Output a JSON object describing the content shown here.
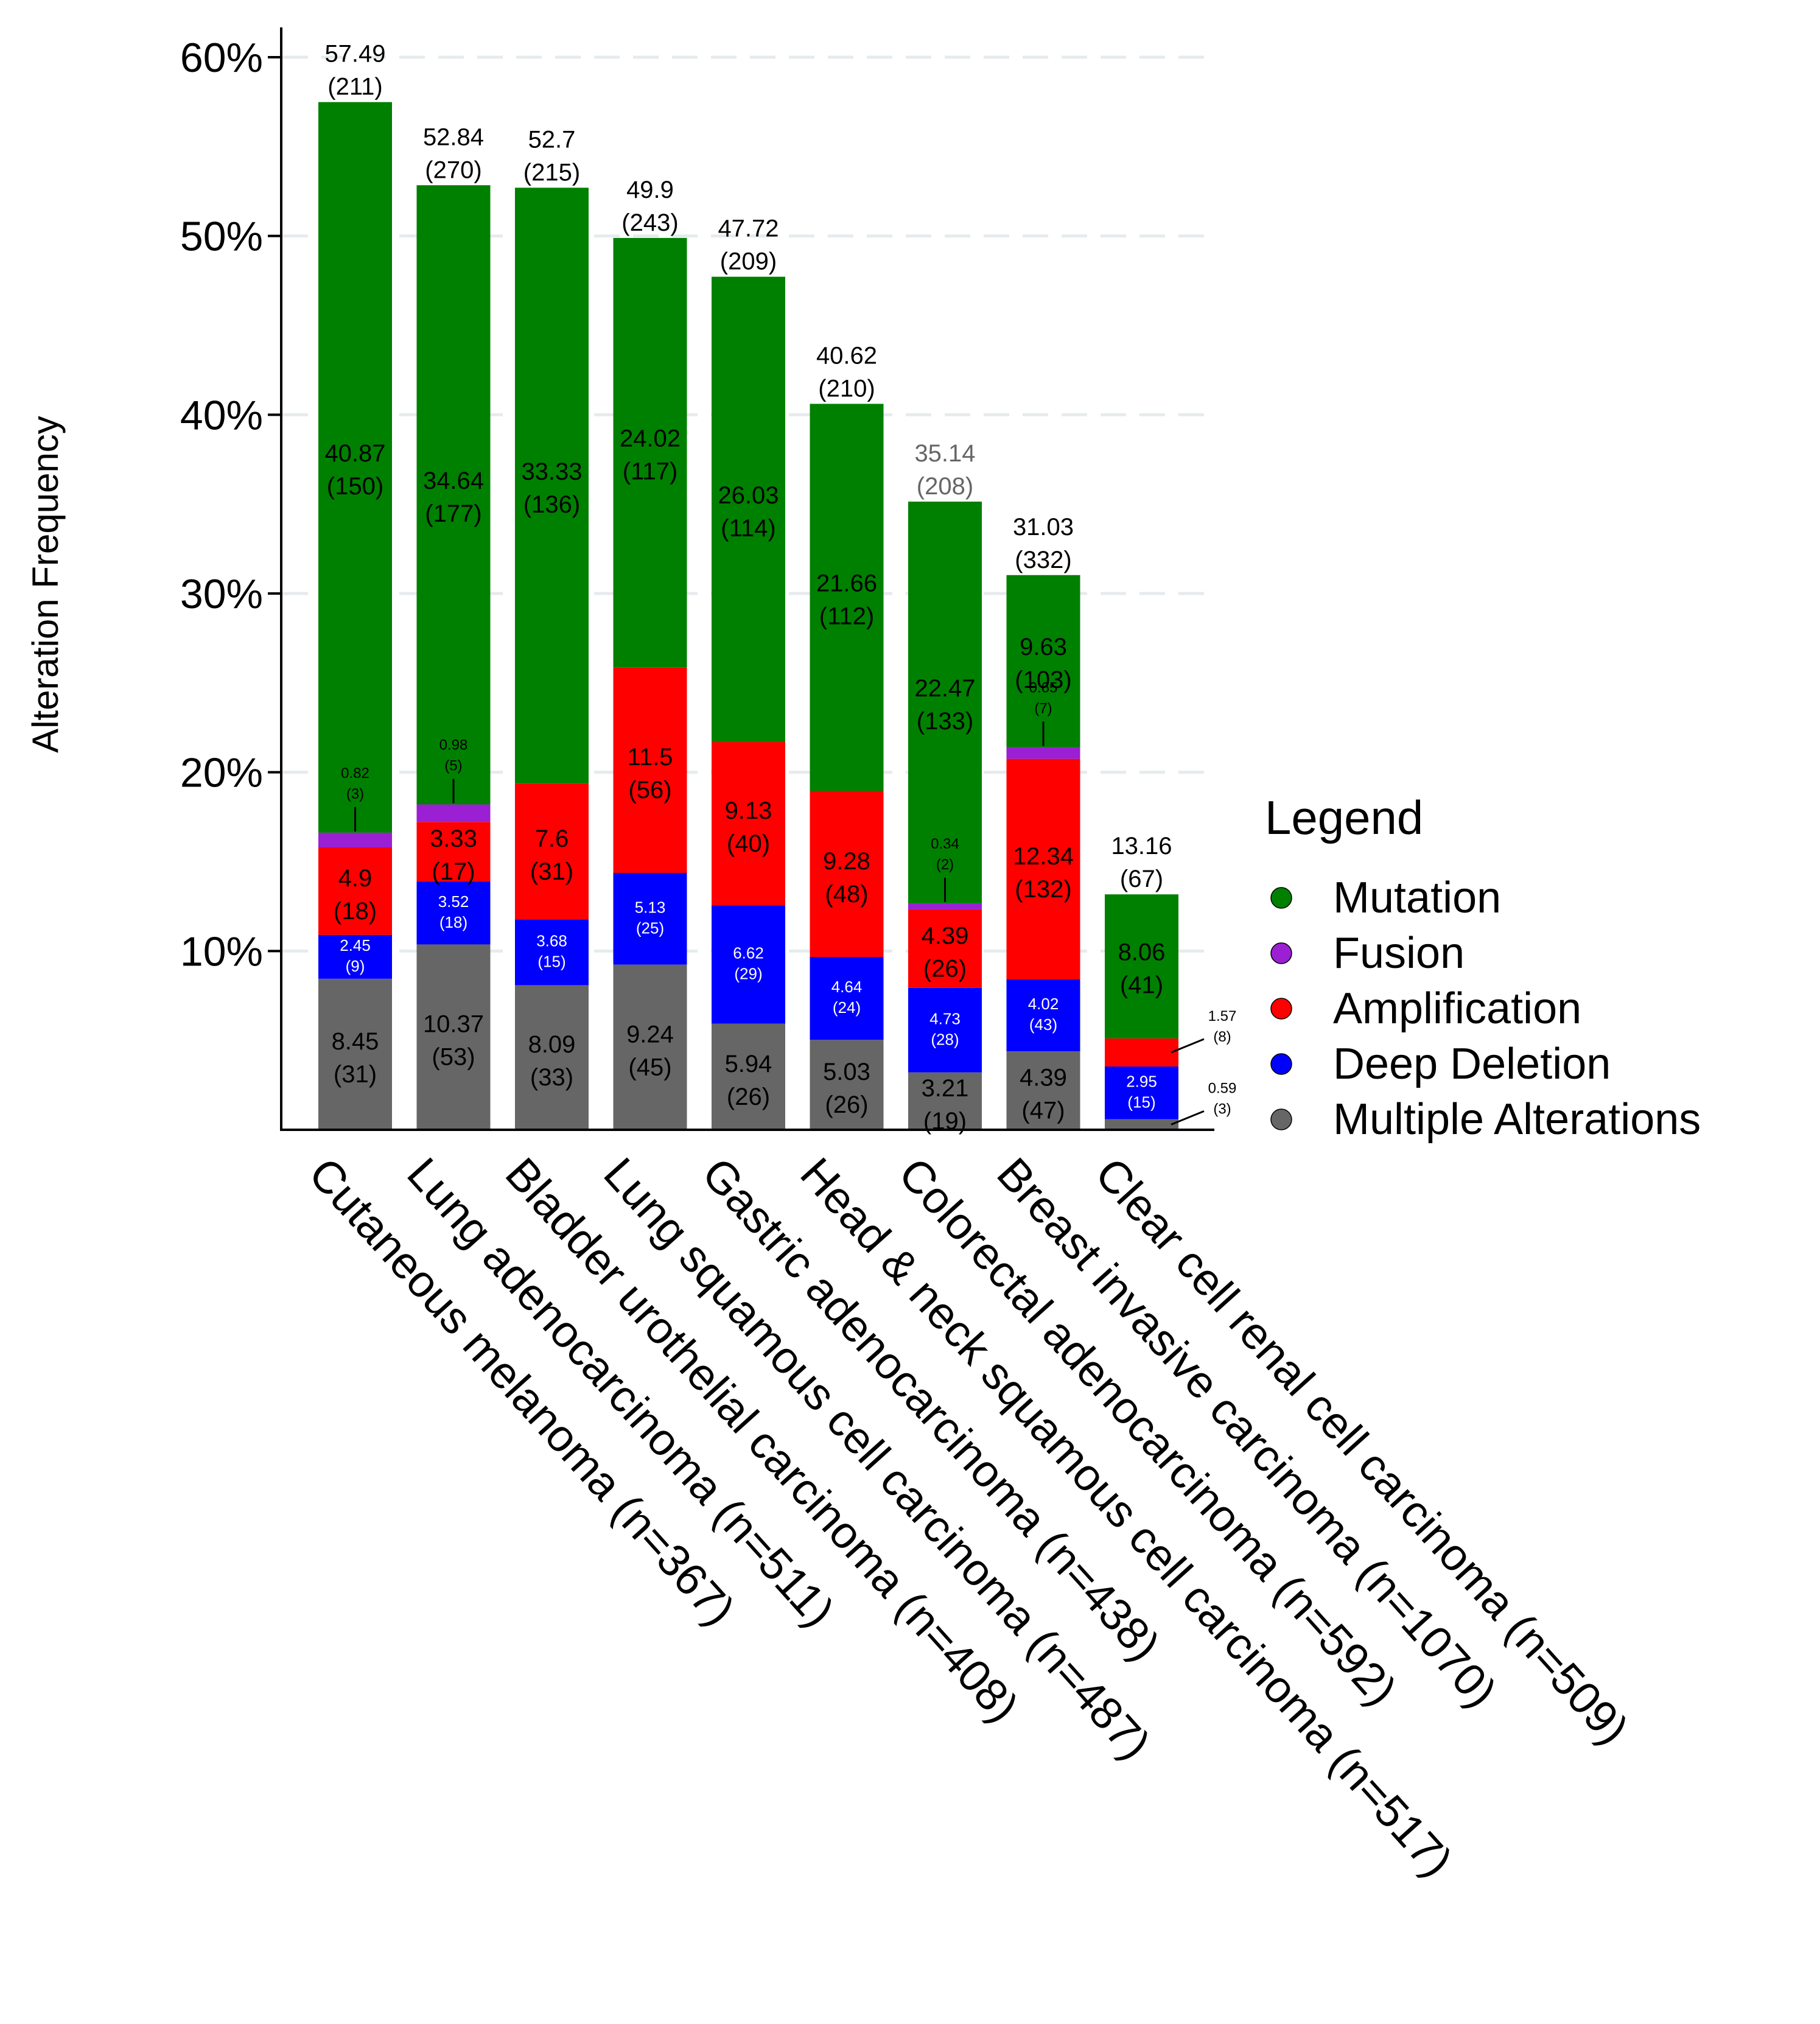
{
  "chart_data": {
    "type": "bar",
    "stacked": true,
    "xlabel": "",
    "ylabel": "Alteration Frequency",
    "ylim": [
      0,
      60
    ],
    "yticks": [
      "10%",
      "20%",
      "30%",
      "40%",
      "50%",
      "60%"
    ],
    "grid": "horizontal dashed",
    "legend": {
      "title": "Legend",
      "placement": "right",
      "items": [
        {
          "name": "Mutation",
          "color": "#008000"
        },
        {
          "name": "Fusion",
          "color": "#9b1fd3"
        },
        {
          "name": "Amplification",
          "color": "#ff0000"
        },
        {
          "name": "Deep Deletion",
          "color": "#0000ff"
        },
        {
          "name": "Multiple Alterations",
          "color": "#666666"
        }
      ]
    },
    "categories": [
      "Cutaneous melanoma (n=367)",
      "Lung adenocarcinoma (n=511)",
      "Bladder urothelial carcinoma (n=408)",
      "Lung squamous cell carcinoma (n=487)",
      "Gastric adenocarcinoma (n=438)",
      "Head & neck squamous cell carcinoma (n=517)",
      "Colorectal adenocarcinoma (n=592)",
      "Breast invasive carcinoma (n=1070)",
      "Clear cell renal cell carcinoma (n=509)"
    ],
    "totals": [
      {
        "value": "57.49",
        "count": "(211)"
      },
      {
        "value": "52.84",
        "count": "(270)"
      },
      {
        "value": "52.7",
        "count": "(215)"
      },
      {
        "value": "49.9",
        "count": "(243)"
      },
      {
        "value": "47.72",
        "count": "(209)"
      },
      {
        "value": "40.62",
        "count": "(210)"
      },
      {
        "value": "35.14",
        "count": "(208)"
      },
      {
        "value": "31.03",
        "count": "(332)"
      },
      {
        "value": "13.16",
        "count": "(67)"
      }
    ],
    "series": [
      {
        "name": "Multiple Alterations",
        "color": "#666666",
        "values": [
          8.45,
          10.37,
          8.09,
          9.24,
          5.94,
          5.03,
          3.21,
          4.39,
          0.59
        ],
        "labels": [
          {
            "value": "8.45",
            "count": "(31)"
          },
          {
            "value": "10.37",
            "count": "(53)"
          },
          {
            "value": "8.09",
            "count": "(33)"
          },
          {
            "value": "9.24",
            "count": "(45)"
          },
          {
            "value": "5.94",
            "count": "(26)"
          },
          {
            "value": "5.03",
            "count": "(26)"
          },
          {
            "value": "3.21",
            "count": "(19)"
          },
          {
            "value": "4.39",
            "count": "(47)"
          },
          {
            "value": "0.59",
            "count": "(3)"
          }
        ]
      },
      {
        "name": "Deep Deletion",
        "color": "#0000ff",
        "values": [
          2.45,
          3.52,
          3.68,
          5.13,
          6.62,
          4.64,
          4.73,
          4.02,
          2.95
        ],
        "labels": [
          {
            "value": "2.45",
            "count": "(9)"
          },
          {
            "value": "3.52",
            "count": "(18)"
          },
          {
            "value": "3.68",
            "count": "(15)"
          },
          {
            "value": "5.13",
            "count": "(25)"
          },
          {
            "value": "6.62",
            "count": "(29)"
          },
          {
            "value": "4.64",
            "count": "(24)"
          },
          {
            "value": "4.73",
            "count": "(28)"
          },
          {
            "value": "4.02",
            "count": "(43)"
          },
          {
            "value": "2.95",
            "count": "(15)"
          }
        ]
      },
      {
        "name": "Amplification",
        "color": "#ff0000",
        "values": [
          4.9,
          3.33,
          7.6,
          11.5,
          9.13,
          9.28,
          4.39,
          12.34,
          1.57
        ],
        "labels": [
          {
            "value": "4.9",
            "count": "(18)"
          },
          {
            "value": "3.33",
            "count": "(17)"
          },
          {
            "value": "7.6",
            "count": "(31)"
          },
          {
            "value": "11.5",
            "count": "(56)"
          },
          {
            "value": "9.13",
            "count": "(40)"
          },
          {
            "value": "9.28",
            "count": "(48)"
          },
          {
            "value": "4.39",
            "count": "(26)"
          },
          {
            "value": "12.34",
            "count": "(132)"
          },
          {
            "value": "1.57",
            "count": "(8)"
          }
        ]
      },
      {
        "name": "Fusion",
        "color": "#9b1fd3",
        "values": [
          0.82,
          0.98,
          0,
          0,
          0,
          0,
          0.34,
          0.65,
          0
        ],
        "labels": [
          {
            "value": "0.82",
            "count": "(3)"
          },
          {
            "value": "0.98",
            "count": "(5)"
          },
          null,
          null,
          null,
          null,
          {
            "value": "0.34",
            "count": "(2)"
          },
          {
            "value": "0.65",
            "count": "(7)"
          },
          null
        ]
      },
      {
        "name": "Mutation",
        "color": "#008000",
        "values": [
          40.87,
          34.64,
          33.33,
          24.02,
          26.03,
          21.66,
          22.47,
          9.63,
          8.06
        ],
        "labels": [
          {
            "value": "40.87",
            "count": "(150)"
          },
          {
            "value": "34.64",
            "count": "(177)"
          },
          {
            "value": "33.33",
            "count": "(136)"
          },
          {
            "value": "24.02",
            "count": "(117)"
          },
          {
            "value": "26.03",
            "count": "(114)"
          },
          {
            "value": "21.66",
            "count": "(112)"
          },
          {
            "value": "22.47",
            "count": "(133)"
          },
          {
            "value": "9.63",
            "count": "(103)"
          },
          {
            "value": "8.06",
            "count": "(41)"
          }
        ]
      }
    ]
  }
}
